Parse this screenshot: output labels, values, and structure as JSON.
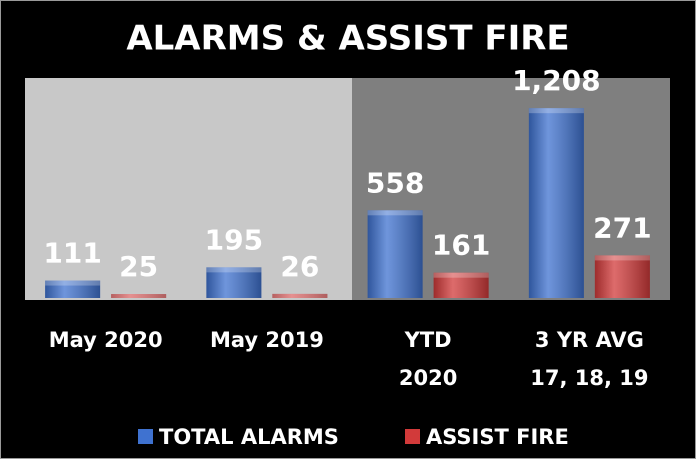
{
  "chart_data": {
    "type": "bar",
    "title": "ALARMS & ASSIST FIRE",
    "categories": [
      "May 2020",
      "May 2019",
      "YTD\n2020",
      "3 YR AVG\n17, 18, 19"
    ],
    "series": [
      {
        "name": "TOTAL ALARMS",
        "color": "#3f72d0",
        "values": [
          111,
          195,
          558,
          1208
        ],
        "value_labels": [
          "111",
          "195",
          "558",
          "1,208"
        ]
      },
      {
        "name": "ASSIST FIRE",
        "color": "#d23a3a",
        "values": [
          25,
          26,
          161,
          271
        ]
      }
    ],
    "ylim": [
      0,
      1400
    ],
    "legend": "bottom"
  }
}
